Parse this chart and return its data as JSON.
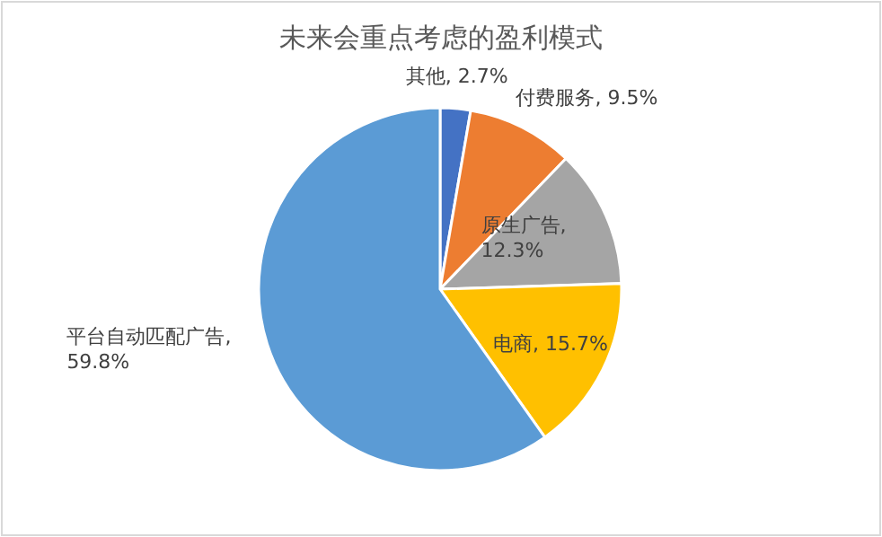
{
  "chart_data": {
    "type": "pie",
    "title": "未来会重点考虑的盈利模式",
    "categories": [
      "其他",
      "付费服务",
      "原生广告",
      "电商",
      "平台自动匹配广告"
    ],
    "values": [
      2.7,
      9.5,
      12.3,
      15.7,
      59.8
    ],
    "value_labels": [
      ", 2.7%",
      ", 9.5%",
      ", 12.3%",
      ", 15.7%",
      ", 59.8%"
    ],
    "colors": [
      "#4472c4",
      "#ed7d31",
      "#a5a5a5",
      "#ffc000",
      "#5b9bd5"
    ]
  }
}
